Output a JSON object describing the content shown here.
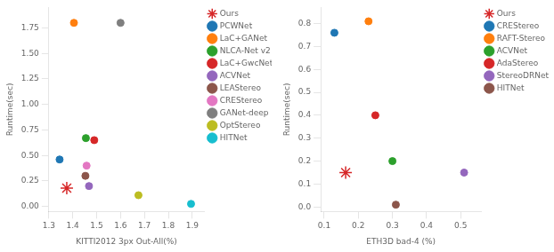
{
  "chart_data": [
    {
      "type": "scatter",
      "xlabel": "KITTI2012 3px Out-All(%)",
      "ylabel": "Runtime(sec)",
      "xlim": [
        1.3,
        1.95
      ],
      "ylim": [
        -0.05,
        1.95
      ],
      "xticks": [
        1.3,
        1.4,
        1.5,
        1.6,
        1.7,
        1.8,
        1.9
      ],
      "yticks": [
        {
          "value": 0.0,
          "label": "0.00"
        },
        0.25,
        {
          "value": 0.5,
          "label": "0.50"
        },
        0.75,
        {
          "value": 1.0,
          "label": "1.00"
        },
        1.25,
        {
          "value": 1.5,
          "label": "1.50"
        },
        1.75
      ],
      "grid": false,
      "legend": "upper right",
      "series": [
        {
          "name": "Ours",
          "color": "#d62728",
          "marker": "star",
          "x": [
            1.375
          ],
          "values": [
            0.18
          ]
        },
        {
          "name": "PCWNet",
          "color": "#1f77b4",
          "marker": "circle",
          "x": [
            1.345
          ],
          "values": [
            0.46
          ]
        },
        {
          "name": "LaC+GANet",
          "color": "#ff7f0e",
          "marker": "circle",
          "x": [
            1.405
          ],
          "values": [
            1.8
          ]
        },
        {
          "name": "NLCA-Net v2",
          "color": "#2ca02c",
          "marker": "circle",
          "x": [
            1.455
          ],
          "values": [
            0.67
          ]
        },
        {
          "name": "LaC+GwcNet",
          "color": "#d62728",
          "marker": "circle",
          "x": [
            1.49
          ],
          "values": [
            0.65
          ]
        },
        {
          "name": "ACVNet",
          "color": "#9467bd",
          "marker": "circle",
          "x": [
            1.468
          ],
          "values": [
            0.2
          ]
        },
        {
          "name": "LEAStereo",
          "color": "#8c564b",
          "marker": "circle",
          "x": [
            1.453
          ],
          "values": [
            0.3
          ]
        },
        {
          "name": "CREStereo",
          "color": "#e377c2",
          "marker": "circle",
          "x": [
            1.458
          ],
          "values": [
            0.4
          ]
        },
        {
          "name": "GANet-deep",
          "color": "#7f7f7f",
          "marker": "circle",
          "x": [
            1.6
          ],
          "values": [
            1.8
          ]
        },
        {
          "name": "OptStereo",
          "color": "#bcbd22",
          "marker": "circle",
          "x": [
            1.675
          ],
          "values": [
            0.11
          ]
        },
        {
          "name": "HITNet",
          "color": "#17becf",
          "marker": "circle",
          "x": [
            1.895
          ],
          "values": [
            0.025
          ]
        }
      ]
    },
    {
      "type": "scatter",
      "xlabel": "ETH3D bad-4 (%)",
      "ylabel": "Runtime(sec)",
      "xlim": [
        0.09,
        0.56
      ],
      "ylim": [
        -0.02,
        0.87
      ],
      "xticks": [
        0.1,
        0.2,
        0.3,
        0.4,
        0.5
      ],
      "yticks": [
        {
          "value": 0.0,
          "label": "0.0"
        },
        0.1,
        0.2,
        0.3,
        0.4,
        0.5,
        0.6,
        0.7,
        0.8
      ],
      "grid": false,
      "legend": "upper right",
      "series": [
        {
          "name": "Ours",
          "color": "#d62728",
          "marker": "star",
          "x": [
            0.163
          ],
          "values": [
            0.15
          ]
        },
        {
          "name": "CREStereo",
          "color": "#1f77b4",
          "marker": "circle",
          "x": [
            0.13
          ],
          "values": [
            0.76
          ]
        },
        {
          "name": "RAFT-Stereo",
          "color": "#ff7f0e",
          "marker": "circle",
          "x": [
            0.23
          ],
          "values": [
            0.81
          ]
        },
        {
          "name": "ACVNet",
          "color": "#2ca02c",
          "marker": "circle",
          "x": [
            0.3
          ],
          "values": [
            0.2
          ]
        },
        {
          "name": "AdaStereo",
          "color": "#d62728",
          "marker": "circle",
          "x": [
            0.25
          ],
          "values": [
            0.4
          ]
        },
        {
          "name": "StereoDRNet",
          "color": "#9467bd",
          "marker": "circle",
          "x": [
            0.51
          ],
          "values": [
            0.15
          ]
        },
        {
          "name": "HITNet",
          "color": "#8c564b",
          "marker": "circle",
          "x": [
            0.31
          ],
          "values": [
            0.01
          ]
        }
      ]
    }
  ]
}
